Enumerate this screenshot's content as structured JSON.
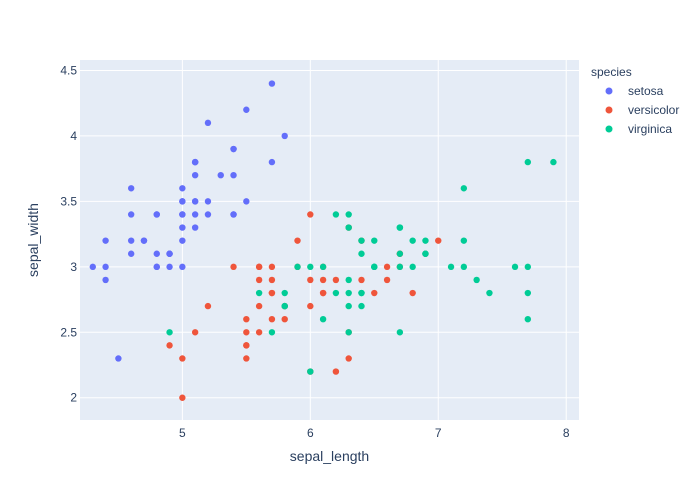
{
  "chart_data": {
    "type": "scatter",
    "title": "",
    "xlabel": "sepal_length",
    "ylabel": "sepal_width",
    "xlim": [
      4.2,
      8.1
    ],
    "ylim": [
      1.83,
      4.58
    ],
    "xticks": [
      5,
      6,
      7,
      8
    ],
    "yticks": [
      2,
      2.5,
      3,
      3.5,
      4,
      4.5
    ],
    "grid": true,
    "legend_title": "species",
    "legend_position": "top-right",
    "series": [
      {
        "name": "setosa",
        "color": "#636efa",
        "points": [
          [
            5.1,
            3.5
          ],
          [
            4.9,
            3.0
          ],
          [
            4.7,
            3.2
          ],
          [
            4.6,
            3.1
          ],
          [
            5.0,
            3.6
          ],
          [
            5.4,
            3.9
          ],
          [
            4.6,
            3.4
          ],
          [
            5.0,
            3.4
          ],
          [
            4.4,
            2.9
          ],
          [
            4.9,
            3.1
          ],
          [
            5.4,
            3.7
          ],
          [
            4.8,
            3.4
          ],
          [
            4.8,
            3.0
          ],
          [
            4.3,
            3.0
          ],
          [
            5.8,
            4.0
          ],
          [
            5.7,
            4.4
          ],
          [
            5.4,
            3.9
          ],
          [
            5.1,
            3.5
          ],
          [
            5.7,
            3.8
          ],
          [
            5.1,
            3.8
          ],
          [
            5.4,
            3.4
          ],
          [
            5.1,
            3.7
          ],
          [
            4.6,
            3.6
          ],
          [
            5.1,
            3.3
          ],
          [
            4.8,
            3.4
          ],
          [
            5.0,
            3.0
          ],
          [
            5.0,
            3.4
          ],
          [
            5.2,
            3.5
          ],
          [
            5.2,
            3.4
          ],
          [
            4.7,
            3.2
          ],
          [
            4.8,
            3.1
          ],
          [
            5.4,
            3.4
          ],
          [
            5.2,
            4.1
          ],
          [
            5.5,
            4.2
          ],
          [
            4.9,
            3.1
          ],
          [
            5.0,
            3.2
          ],
          [
            5.5,
            3.5
          ],
          [
            4.9,
            3.1
          ],
          [
            4.4,
            3.0
          ],
          [
            5.1,
            3.4
          ],
          [
            5.0,
            3.5
          ],
          [
            4.5,
            2.3
          ],
          [
            4.4,
            3.2
          ],
          [
            5.0,
            3.5
          ],
          [
            5.1,
            3.8
          ],
          [
            4.8,
            3.0
          ],
          [
            5.1,
            3.8
          ],
          [
            4.6,
            3.2
          ],
          [
            5.3,
            3.7
          ],
          [
            5.0,
            3.3
          ]
        ]
      },
      {
        "name": "versicolor",
        "color": "#ef553b",
        "points": [
          [
            7.0,
            3.2
          ],
          [
            6.4,
            3.2
          ],
          [
            6.9,
            3.1
          ],
          [
            5.5,
            2.3
          ],
          [
            6.5,
            2.8
          ],
          [
            5.7,
            2.8
          ],
          [
            6.3,
            3.3
          ],
          [
            4.9,
            2.4
          ],
          [
            6.6,
            2.9
          ],
          [
            5.2,
            2.7
          ],
          [
            5.0,
            2.0
          ],
          [
            5.9,
            3.0
          ],
          [
            6.0,
            2.2
          ],
          [
            6.1,
            2.9
          ],
          [
            5.6,
            2.9
          ],
          [
            6.7,
            3.1
          ],
          [
            5.6,
            3.0
          ],
          [
            5.8,
            2.7
          ],
          [
            6.2,
            2.2
          ],
          [
            5.6,
            2.5
          ],
          [
            5.9,
            3.2
          ],
          [
            6.1,
            2.8
          ],
          [
            6.3,
            2.5
          ],
          [
            6.1,
            2.8
          ],
          [
            6.4,
            2.9
          ],
          [
            6.6,
            3.0
          ],
          [
            6.8,
            2.8
          ],
          [
            6.7,
            3.0
          ],
          [
            6.0,
            2.9
          ],
          [
            5.7,
            2.6
          ],
          [
            5.5,
            2.4
          ],
          [
            5.5,
            2.4
          ],
          [
            5.8,
            2.7
          ],
          [
            6.0,
            2.7
          ],
          [
            5.4,
            3.0
          ],
          [
            6.0,
            3.4
          ],
          [
            6.7,
            3.1
          ],
          [
            6.3,
            2.3
          ],
          [
            5.6,
            3.0
          ],
          [
            5.5,
            2.5
          ],
          [
            5.5,
            2.6
          ],
          [
            6.1,
            3.0
          ],
          [
            5.8,
            2.6
          ],
          [
            5.0,
            2.3
          ],
          [
            5.6,
            2.7
          ],
          [
            5.7,
            3.0
          ],
          [
            5.7,
            2.9
          ],
          [
            6.2,
            2.9
          ],
          [
            5.1,
            2.5
          ],
          [
            5.7,
            2.8
          ]
        ]
      },
      {
        "name": "virginica",
        "color": "#00cc96",
        "points": [
          [
            6.3,
            3.3
          ],
          [
            5.8,
            2.7
          ],
          [
            7.1,
            3.0
          ],
          [
            6.3,
            2.9
          ],
          [
            6.5,
            3.0
          ],
          [
            7.6,
            3.0
          ],
          [
            4.9,
            2.5
          ],
          [
            7.3,
            2.9
          ],
          [
            6.7,
            2.5
          ],
          [
            7.2,
            3.6
          ],
          [
            6.5,
            3.2
          ],
          [
            6.4,
            2.7
          ],
          [
            6.8,
            3.0
          ],
          [
            5.7,
            2.5
          ],
          [
            5.8,
            2.8
          ],
          [
            6.4,
            3.2
          ],
          [
            6.5,
            3.0
          ],
          [
            7.7,
            3.8
          ],
          [
            7.7,
            2.6
          ],
          [
            6.0,
            2.2
          ],
          [
            6.9,
            3.2
          ],
          [
            5.6,
            2.8
          ],
          [
            7.7,
            2.8
          ],
          [
            6.3,
            2.7
          ],
          [
            6.7,
            3.3
          ],
          [
            7.2,
            3.2
          ],
          [
            6.2,
            2.8
          ],
          [
            6.1,
            3.0
          ],
          [
            6.4,
            2.8
          ],
          [
            7.2,
            3.0
          ],
          [
            7.4,
            2.8
          ],
          [
            7.9,
            3.8
          ],
          [
            6.4,
            2.8
          ],
          [
            6.3,
            2.8
          ],
          [
            6.1,
            2.6
          ],
          [
            7.7,
            3.0
          ],
          [
            6.3,
            3.4
          ],
          [
            6.4,
            3.1
          ],
          [
            6.0,
            3.0
          ],
          [
            6.9,
            3.1
          ],
          [
            6.7,
            3.1
          ],
          [
            6.9,
            3.1
          ],
          [
            5.8,
            2.7
          ],
          [
            6.8,
            3.2
          ],
          [
            6.7,
            3.3
          ],
          [
            6.7,
            3.0
          ],
          [
            6.3,
            2.5
          ],
          [
            6.5,
            3.0
          ],
          [
            6.2,
            3.4
          ],
          [
            5.9,
            3.0
          ]
        ]
      }
    ]
  }
}
